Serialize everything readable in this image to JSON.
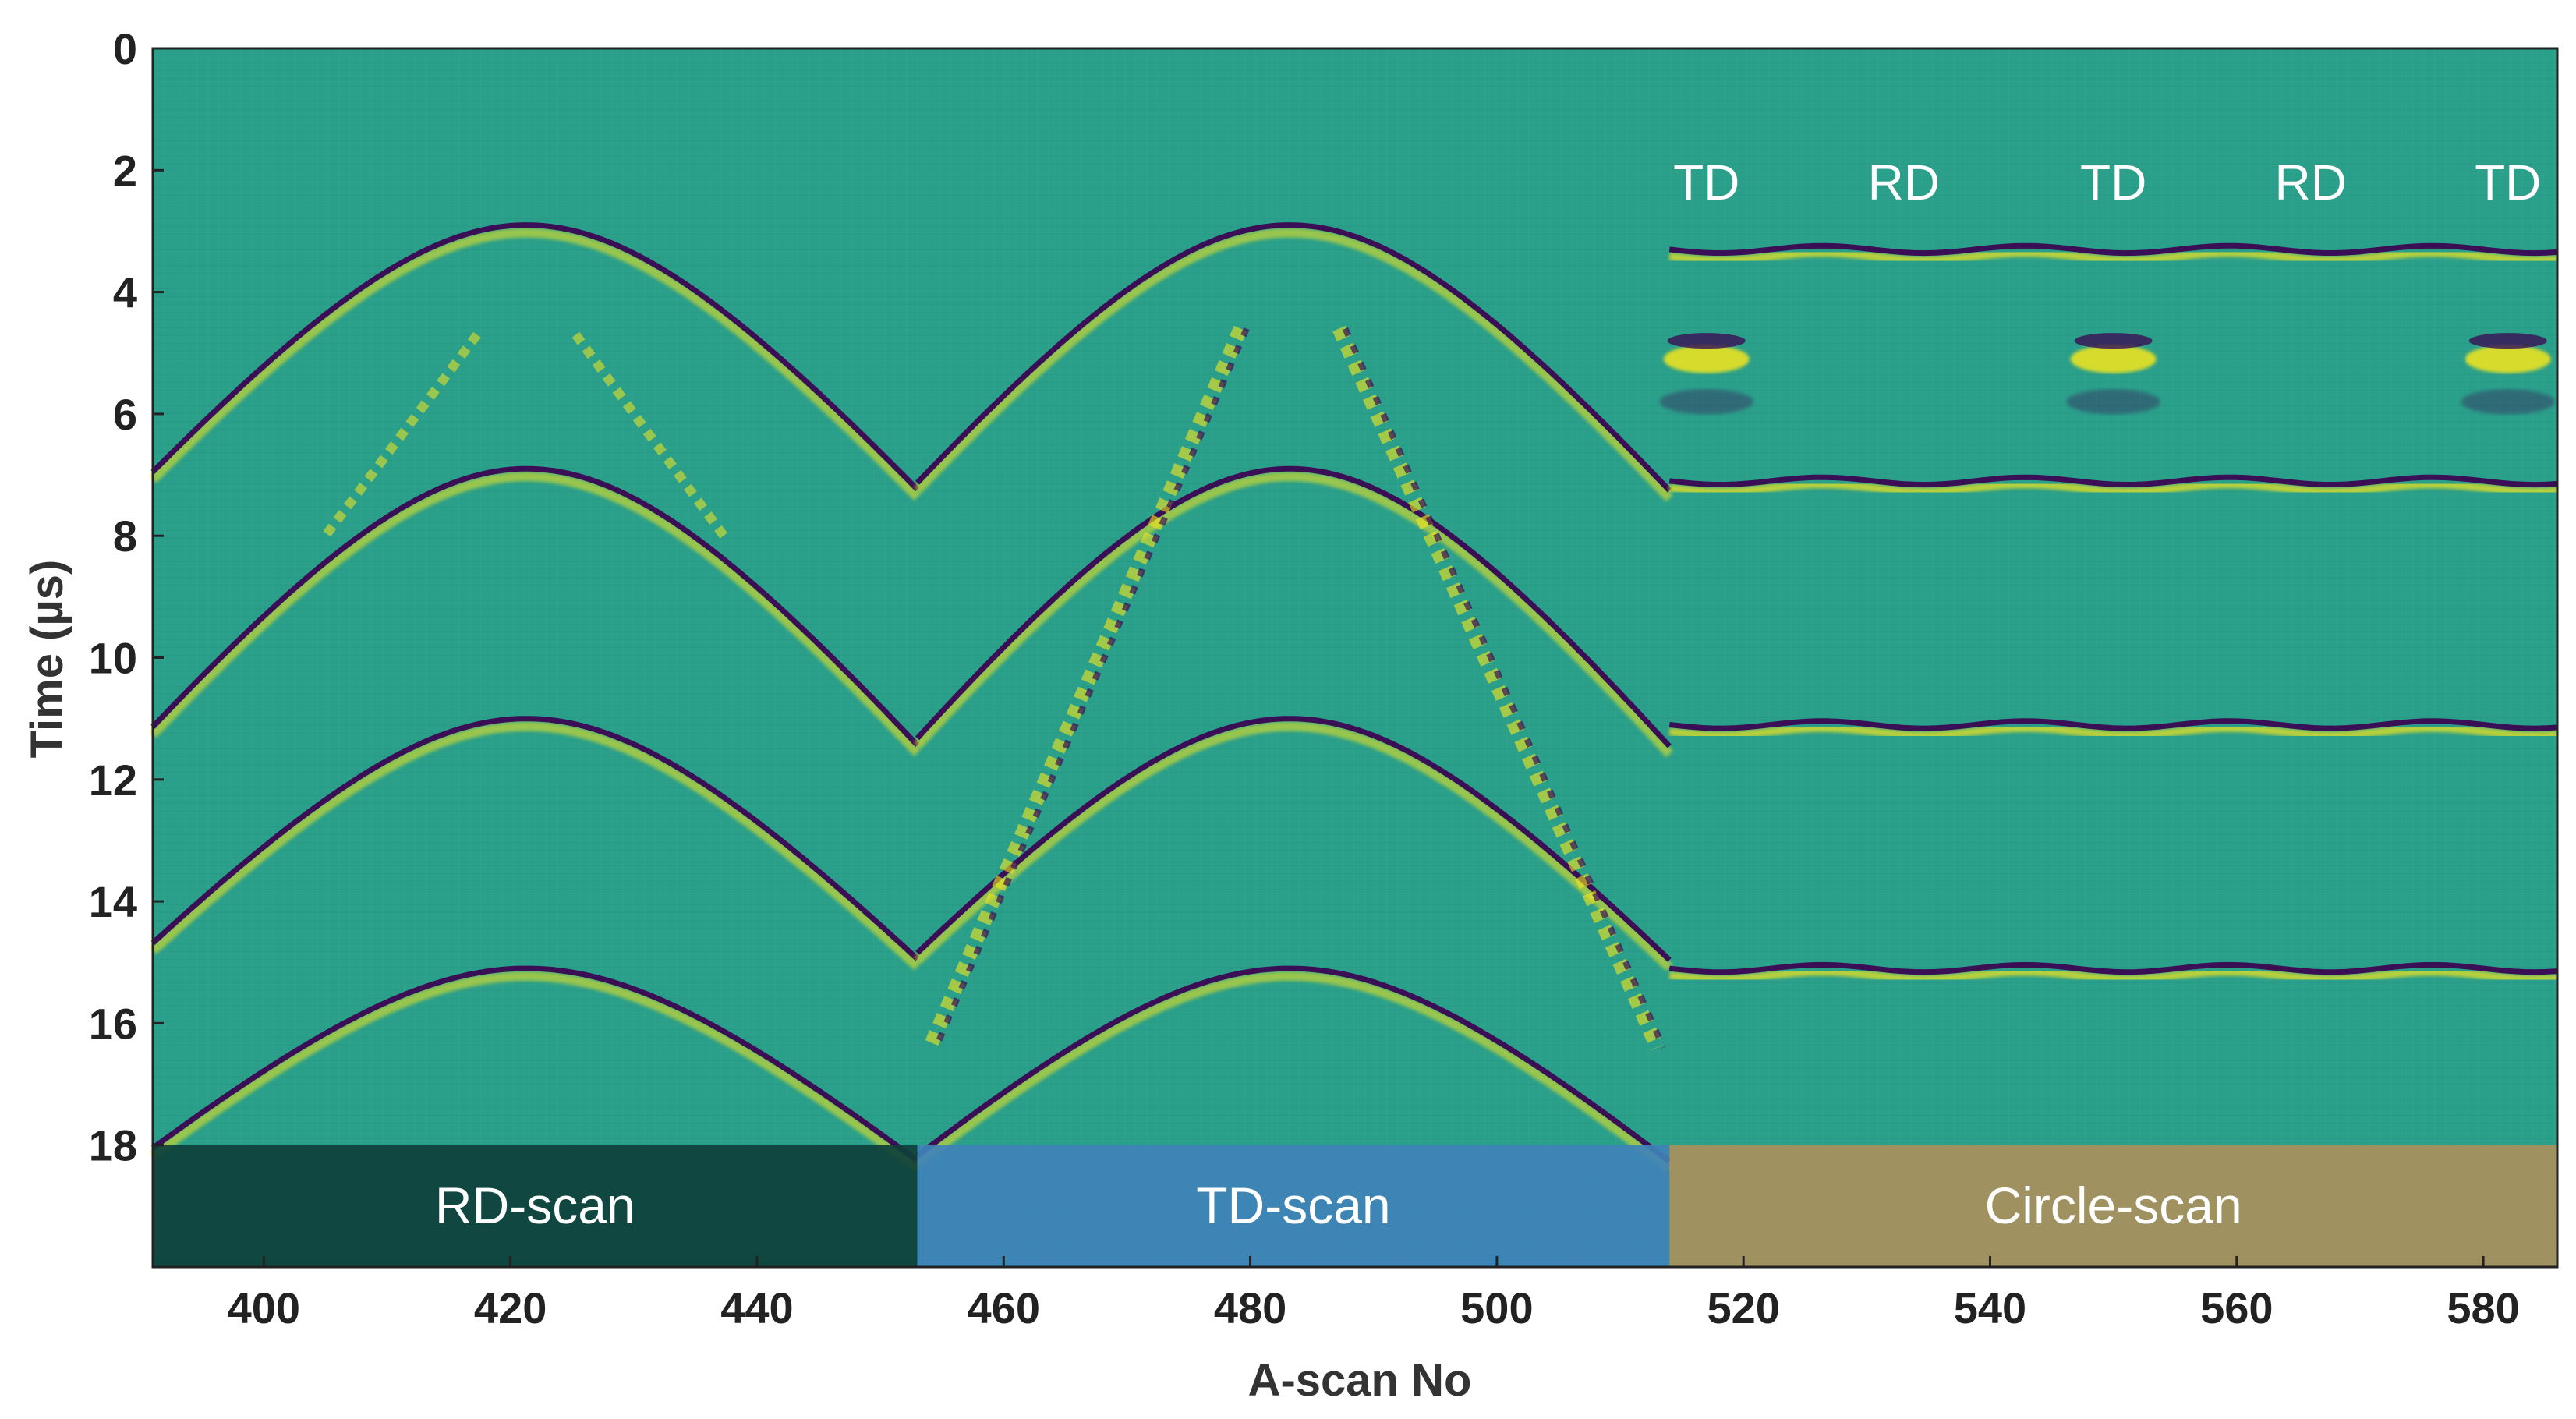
{
  "chart_data": {
    "type": "heatmap",
    "title": "",
    "xlabel": "A-scan No",
    "ylabel": "Time (µs)",
    "xlim": [
      391,
      586
    ],
    "ylim": [
      0,
      20
    ],
    "y_reversed": true,
    "x_ticks": [
      400,
      420,
      440,
      460,
      480,
      500,
      520,
      540,
      560,
      580
    ],
    "y_ticks": [
      0,
      2,
      4,
      6,
      8,
      10,
      12,
      14,
      16,
      18
    ],
    "colormap": {
      "background": "#2a9f8a",
      "positive": "#f4e61e",
      "negative": "#3a0f55"
    },
    "regions": [
      {
        "label": "RD-scan",
        "x_range": [
          391,
          453
        ],
        "color": "#0e3f3a"
      },
      {
        "label": "TD-scan",
        "x_range": [
          453,
          514
        ],
        "color": "#3f82b8"
      },
      {
        "label": "Circle-scan",
        "x_range": [
          514,
          586
        ],
        "color": "#a98f5c"
      }
    ],
    "label_band_y_range": [
      18,
      20
    ],
    "direction_labels": [
      {
        "text": "TD",
        "x": 517
      },
      {
        "text": "RD",
        "x": 533
      },
      {
        "text": "TD",
        "x": 550
      },
      {
        "text": "RD",
        "x": 566
      },
      {
        "text": "TD",
        "x": 582
      }
    ],
    "direction_label_y": 2.2,
    "hyperbola_echoes": [
      {
        "scan": "RD-scan",
        "apex_x": 421.3,
        "apex_t": 2.9,
        "half_width": 32,
        "edge_rise": 4.4
      },
      {
        "scan": "RD-scan",
        "apex_x": 421.3,
        "apex_t": 6.9,
        "half_width": 32,
        "edge_rise": 4.6
      },
      {
        "scan": "RD-scan",
        "apex_x": 421.3,
        "apex_t": 11.0,
        "half_width": 32,
        "edge_rise": 4.0
      },
      {
        "scan": "RD-scan",
        "apex_x": 421.3,
        "apex_t": 15.1,
        "half_width": 32,
        "edge_rise": 3.2
      },
      {
        "scan": "TD-scan",
        "apex_x": 483.2,
        "apex_t": 2.9,
        "half_width": 31,
        "edge_rise": 4.4
      },
      {
        "scan": "TD-scan",
        "apex_x": 483.2,
        "apex_t": 6.9,
        "half_width": 31,
        "edge_rise": 4.6
      },
      {
        "scan": "TD-scan",
        "apex_x": 483.2,
        "apex_t": 11.0,
        "half_width": 31,
        "edge_rise": 4.0
      },
      {
        "scan": "TD-scan",
        "apex_x": 483.2,
        "apex_t": 15.1,
        "half_width": 31,
        "edge_rise": 3.2
      }
    ],
    "circle_scan_echoes_t": [
      3.3,
      7.1,
      11.1,
      15.1
    ]
  }
}
